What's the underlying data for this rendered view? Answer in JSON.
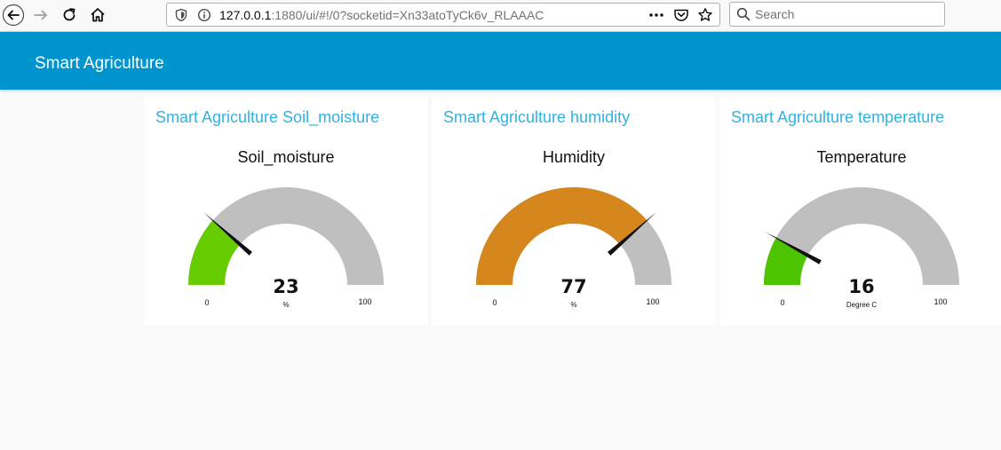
{
  "browser": {
    "url_host": "127.0.0.1",
    "url_rest": ":1880/ui/#!/0?socketid=Xn33atoTyCk6v_RLAAAC",
    "search_placeholder": "Search"
  },
  "app": {
    "title": "Smart Agriculture"
  },
  "cards": [
    {
      "title": "Smart Agriculture Soil_moisture",
      "gauge": {
        "label": "Soil_moisture",
        "value": 23,
        "unit": "%",
        "min": 0,
        "max": 100,
        "min_label": "0",
        "max_label": "100",
        "value_text": "23",
        "color": "#66cc00"
      }
    },
    {
      "title": "Smart Agriculture humidity",
      "gauge": {
        "label": "Humidity",
        "value": 77,
        "unit": "%",
        "min": 0,
        "max": 100,
        "min_label": "0",
        "max_label": "100",
        "value_text": "77",
        "color": "#d5871e"
      }
    },
    {
      "title": "Smart Agriculture temperature",
      "gauge": {
        "label": "Temperature",
        "value": 16,
        "unit": "Degree C",
        "min": 0,
        "max": 100,
        "min_label": "0",
        "max_label": "100",
        "value_text": "16",
        "color": "#4cc400"
      }
    }
  ],
  "colors": {
    "header": "#0094ce",
    "card_title": "#31b2e1",
    "gauge_track": "#bfbfbf"
  }
}
